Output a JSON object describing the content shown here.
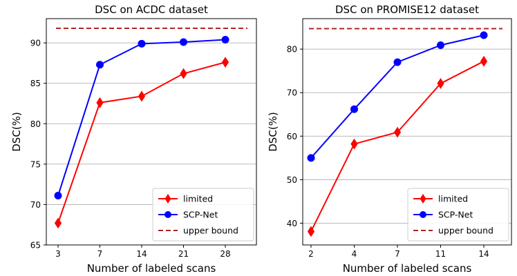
{
  "chart_data": [
    {
      "type": "line",
      "title": "DSC on ACDC dataset",
      "xlabel": "Number of labeled scans",
      "ylabel": "DSC(%)",
      "categories": [
        "3",
        "7",
        "14",
        "21",
        "28"
      ],
      "ylim": [
        65,
        93
      ],
      "yticks": [
        65,
        70,
        75,
        80,
        85,
        90
      ],
      "grid": "horizontal",
      "legend": "bottom-right",
      "series": [
        {
          "name": "limited",
          "values": [
            67.7,
            82.6,
            83.4,
            86.2,
            87.6
          ],
          "color": "#ff0000",
          "marker": "diamond"
        },
        {
          "name": "SCP-Net",
          "values": [
            71.1,
            87.3,
            89.9,
            90.1,
            90.4
          ],
          "color": "#0000ff",
          "marker": "circle"
        }
      ],
      "reference": {
        "name": "upper bound",
        "value": 91.8,
        "color": "#b22222",
        "style": "dashed"
      }
    },
    {
      "type": "line",
      "title": "DSC on PROMISE12 dataset",
      "xlabel": "Number of labeled scans",
      "ylabel": "DSC(%)",
      "categories": [
        "2",
        "4",
        "7",
        "11",
        "14"
      ],
      "ylim": [
        35,
        87
      ],
      "yticks": [
        40,
        50,
        60,
        70,
        80
      ],
      "grid": "horizontal",
      "legend": "bottom-right",
      "series": [
        {
          "name": "limited",
          "values": [
            38.1,
            58.2,
            60.9,
            72.1,
            77.2
          ],
          "color": "#ff0000",
          "marker": "diamond"
        },
        {
          "name": "SCP-Net",
          "values": [
            55.0,
            66.2,
            77.0,
            80.9,
            83.2
          ],
          "color": "#0000ff",
          "marker": "circle"
        }
      ],
      "reference": {
        "name": "upper bound",
        "value": 84.7,
        "color": "#b22222",
        "style": "dashed"
      }
    }
  ]
}
